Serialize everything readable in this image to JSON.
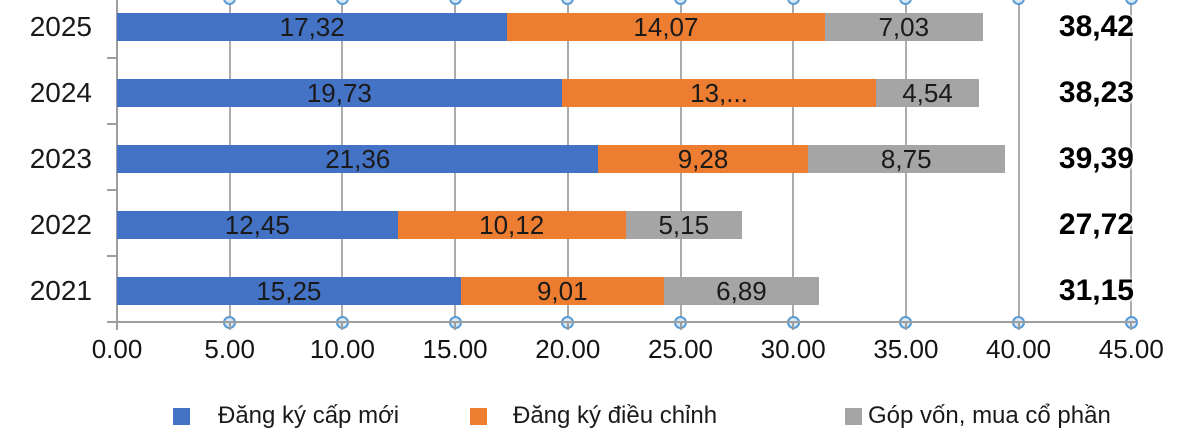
{
  "chart_data": {
    "type": "bar",
    "orientation": "horizontal-stacked",
    "title": "",
    "categories": [
      "2025",
      "2024",
      "2023",
      "2022",
      "2021"
    ],
    "series": [
      {
        "name": "Đăng ký cấp mới",
        "color": "#4472C4",
        "values": [
          17.32,
          19.73,
          21.36,
          12.45,
          15.25
        ],
        "labels": [
          "17,32",
          "19,73",
          "21,36",
          "12,45",
          "15,25"
        ]
      },
      {
        "name": "Đăng ký điều chỉnh",
        "color": "#ED7D31",
        "values": [
          14.07,
          13.96,
          9.28,
          10.12,
          9.01
        ],
        "labels": [
          "14,07",
          "13,...",
          "9,28",
          "10,12",
          "9,01"
        ]
      },
      {
        "name": "Góp vốn, mua cổ phần",
        "color": "#A5A5A5",
        "values": [
          7.03,
          4.54,
          8.75,
          5.15,
          6.89
        ],
        "labels": [
          "7,03",
          "4,54",
          "8,75",
          "5,15",
          "6,89"
        ]
      }
    ],
    "totals": [
      "38,42",
      "38,23",
      "39,39",
      "27,72",
      "31,15"
    ],
    "x_ticks": [
      "0.00",
      "5.00",
      "10.00",
      "15.00",
      "20.00",
      "25.00",
      "30.00",
      "35.00",
      "40.00",
      "45.00"
    ],
    "xlim": [
      0,
      45
    ],
    "grid": true,
    "legend_position": "bottom"
  },
  "colors": {
    "gridline": "#ACACAC",
    "axis": "#9E9E9E",
    "handle_fill": "#D9E8F6",
    "handle_stroke": "#5B9BD5",
    "bar_label": "#1A1A1A",
    "total_label": "#000000"
  }
}
